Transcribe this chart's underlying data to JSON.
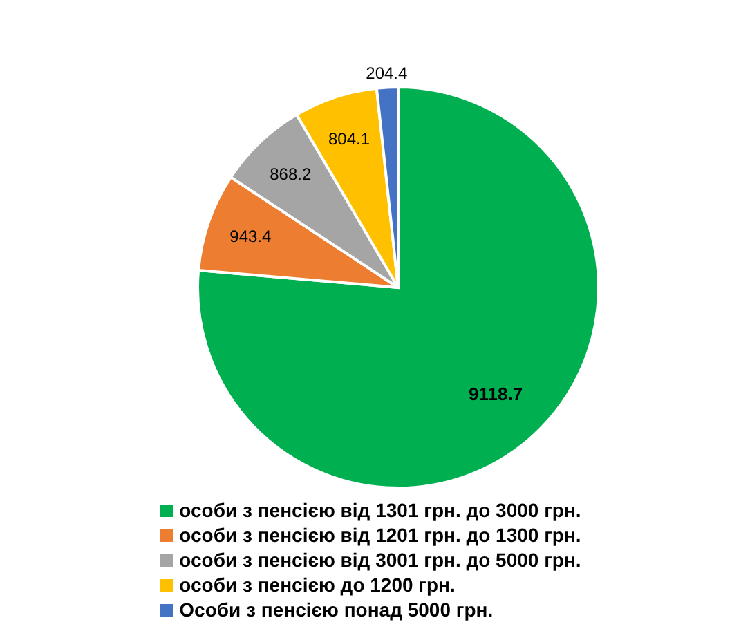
{
  "chart_data": {
    "type": "pie",
    "categories": [
      "особи з пенсією від 1301 грн. до 3000 грн.",
      "особи з пенсією від 1201 грн. до 1300 грн.",
      "особи з пенсією від 3001 грн. до 5000 грн.",
      "особи з пенсією до 1200 грн.",
      "Особи з пенсією понад 5000 грн."
    ],
    "values": [
      9118.7,
      943.4,
      868.2,
      804.1,
      204.4
    ],
    "colors": [
      "#00b050",
      "#ed7d31",
      "#a5a5a5",
      "#ffc000",
      "#4472c4"
    ],
    "data_labels": true,
    "legend": "bottom"
  }
}
